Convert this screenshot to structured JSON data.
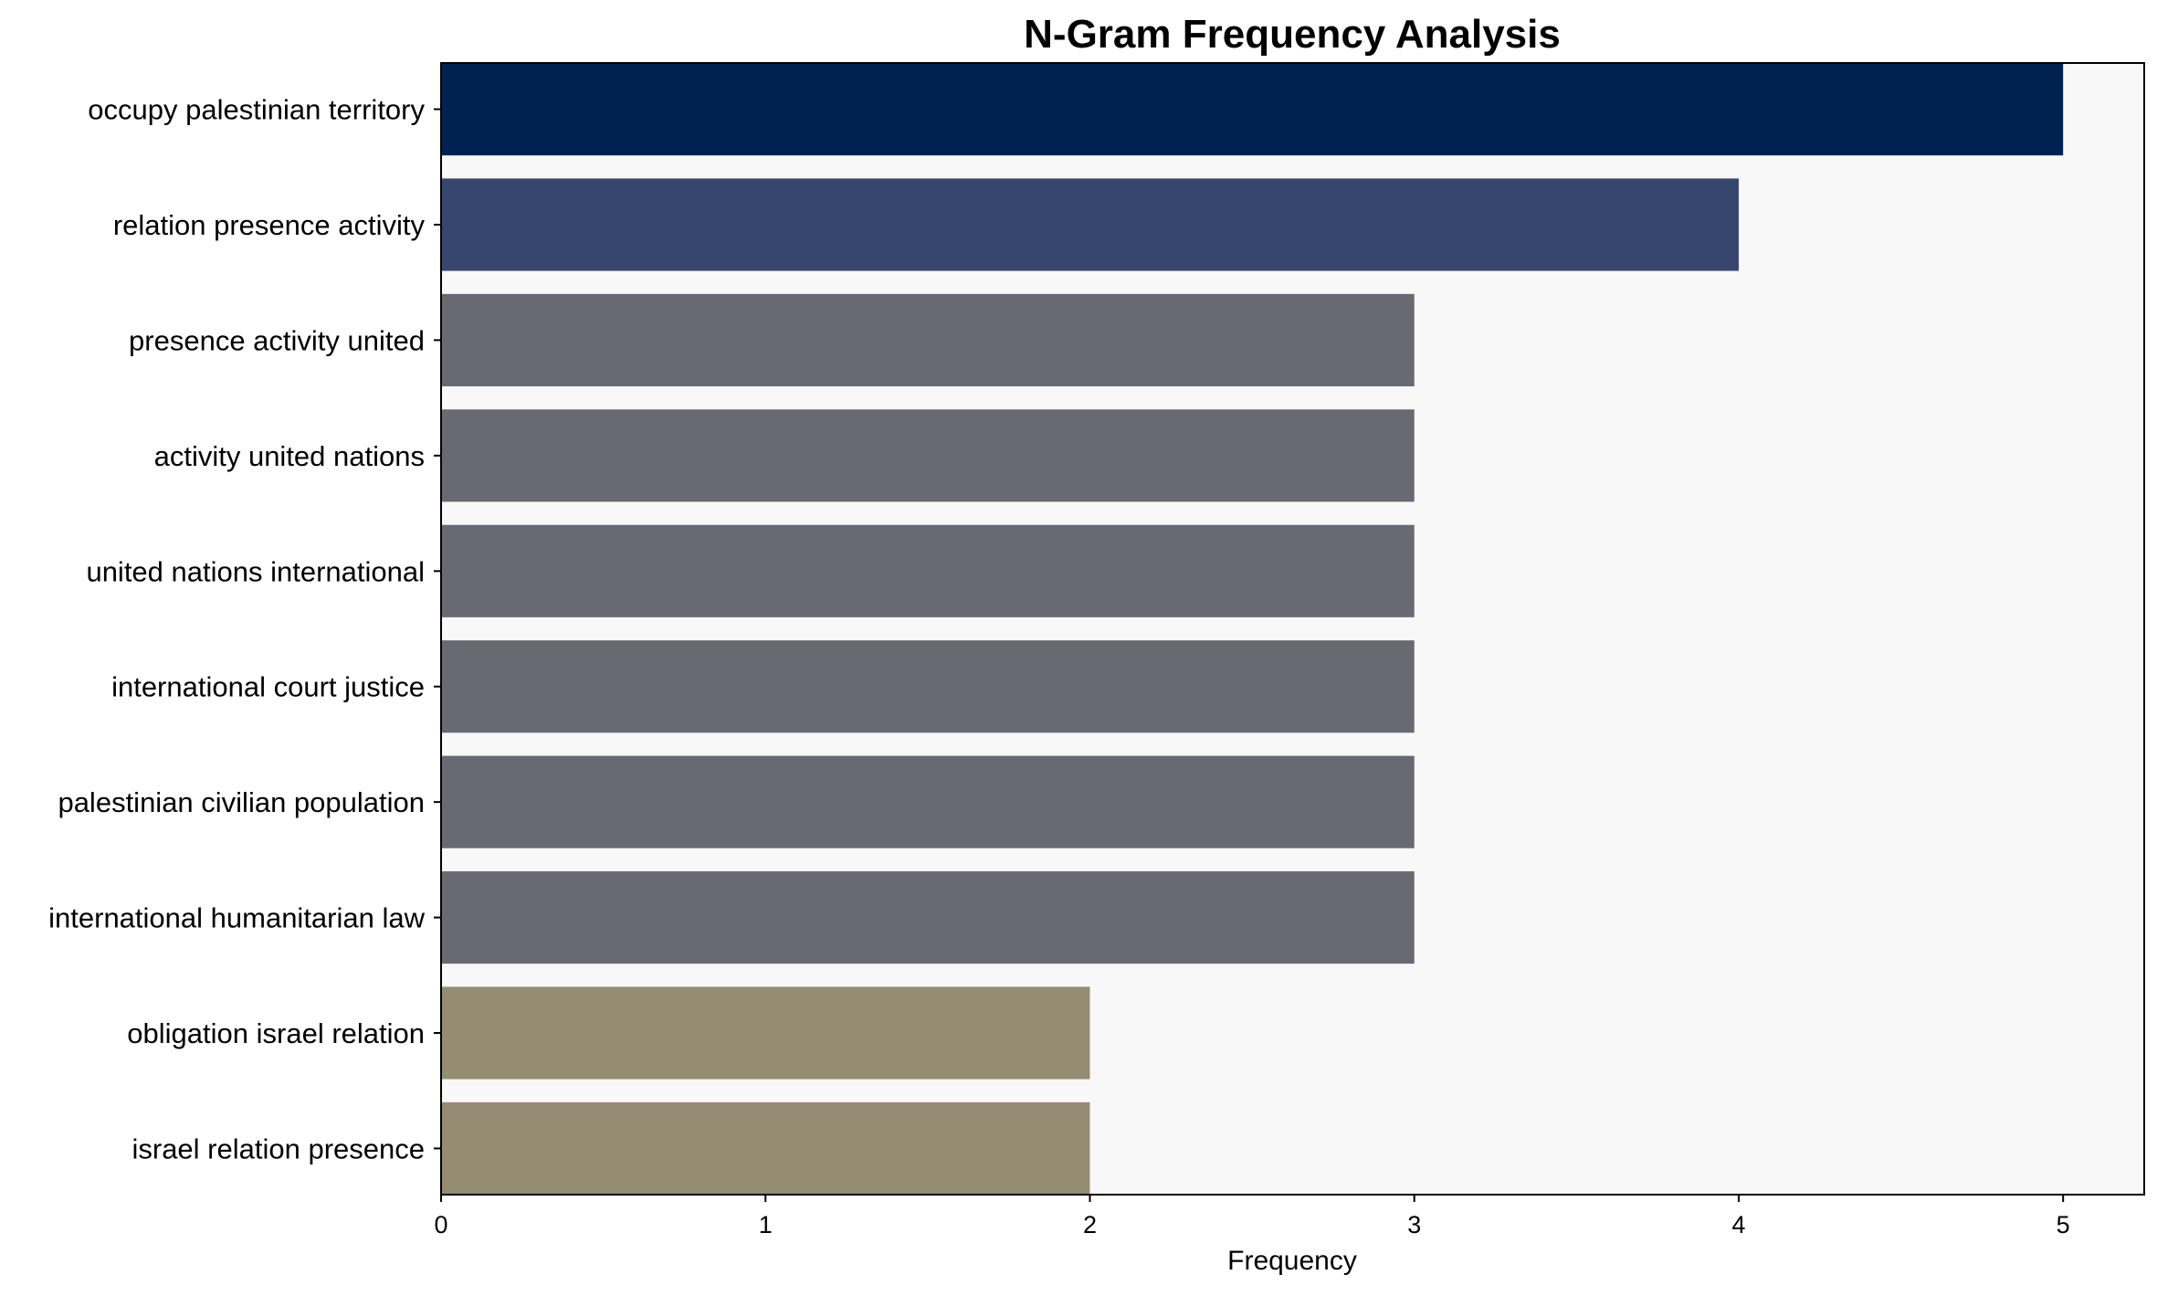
{
  "chart_data": {
    "type": "bar",
    "orientation": "horizontal",
    "title": "N-Gram Frequency Analysis",
    "xlabel": "Frequency",
    "ylabel": "",
    "xlim": [
      0,
      5.25
    ],
    "xticks": [
      0,
      1,
      2,
      3,
      4,
      5
    ],
    "grid": false,
    "background_color": "#f8f8f8",
    "categories": [
      "occupy palestinian territory",
      "relation presence activity",
      "presence activity united",
      "activity united nations",
      "united nations international",
      "international court justice",
      "palestinian civilian population",
      "international humanitarian law",
      "obligation israel relation",
      "israel relation presence"
    ],
    "values": [
      5,
      4,
      3,
      3,
      3,
      3,
      3,
      3,
      2,
      2
    ],
    "colors": [
      "#002251",
      "#36466d",
      "#676a72",
      "#676a72",
      "#676a72",
      "#676a72",
      "#676a72",
      "#676a72",
      "#958c74",
      "#958c74"
    ]
  }
}
